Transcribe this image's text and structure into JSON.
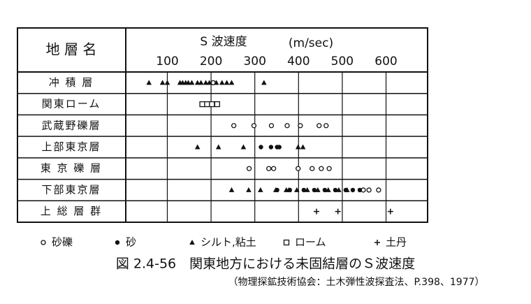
{
  "chart_data": {
    "type": "strip",
    "row_header": "地 層 名",
    "x_label": "S 波速度",
    "x_unit": "(m/sec)",
    "rows": [
      "冲 積 層",
      "関東ローム",
      "武蔵野礫層",
      "上部東京層",
      "東 京 礫 層",
      "下部東京層",
      "上 総 層 群"
    ],
    "xlim": [
      5,
      695
    ],
    "xticks": [
      100,
      200,
      300,
      400,
      500,
      600
    ],
    "grid": true,
    "color": "#111111",
    "series": [
      {
        "name": "砂礫",
        "marker": "open-circle",
        "values": [
          205,
          252,
          298,
          338,
          374,
          404,
          447,
          463,
          287,
          332,
          343,
          399,
          431,
          452,
          470,
          548,
          561,
          583
        ],
        "categories": [
          "冲 積 層",
          "武蔵野礫層",
          "武蔵野礫層",
          "武蔵野礫層",
          "武蔵野礫層",
          "武蔵野礫層",
          "武蔵野礫層",
          "武蔵野礫層",
          "東 京 礫 層",
          "東 京 礫 層",
          "東 京 礫 層",
          "東 京 礫 層",
          "東 京 礫 層",
          "東 京 礫 層",
          "東 京 礫 層",
          "下部東京層",
          "下部東京層",
          "下部東京層"
        ]
      },
      {
        "name": "砂",
        "marker": "filled-circle",
        "values": [
          314,
          337,
          351,
          356,
          351,
          380,
          412,
          436,
          460,
          484,
          508,
          524,
          540
        ],
        "categories": [
          "上部東京層",
          "上部東京層",
          "上部東京層",
          "上部東京層",
          "下部東京層",
          "下部東京層",
          "下部東京層",
          "下部東京層",
          "下部東京層",
          "下部東京層",
          "下部東京層",
          "下部東京層",
          "下部東京層"
        ]
      },
      {
        "name": "シルト,粘土",
        "marker": "triangle",
        "values": [
          58,
          89,
          100,
          129,
          135,
          142,
          148,
          156,
          169,
          177,
          188,
          196,
          212,
          225,
          236,
          247,
          321,
          169,
          217,
          274,
          399,
          410,
          247,
          286,
          313,
          348,
          372,
          378,
          396,
          420,
          444,
          468,
          492,
          511
        ],
        "categories": [
          "冲 積 層",
          "冲 積 層",
          "冲 積 層",
          "冲 積 層",
          "冲 積 層",
          "冲 積 層",
          "冲 積 層",
          "冲 積 層",
          "冲 積 層",
          "冲 積 層",
          "冲 積 層",
          "冲 積 層",
          "冲 積 層",
          "冲 積 層",
          "冲 積 層",
          "冲 積 層",
          "冲 積 層",
          "上部東京層",
          "上部東京層",
          "上部東京層",
          "上部東京層",
          "上部東京層",
          "下部東京層",
          "下部東京層",
          "下部東京層",
          "下部東京層",
          "下部東京層",
          "下部東京層",
          "下部東京層",
          "下部東京層",
          "下部東京層",
          "下部東京層",
          "下部東京層",
          "下部東京層"
        ]
      },
      {
        "name": "ローム",
        "marker": "square",
        "values": [
          180,
          191,
          202,
          214
        ],
        "categories": [
          "関東ローム",
          "関東ローム",
          "関東ローム",
          "関東ローム"
        ]
      },
      {
        "name": "土丹",
        "marker": "plus",
        "values": [
          441,
          490,
          610
        ],
        "categories": [
          "上 総 層 群",
          "上 総 層 群",
          "上 総 層 群"
        ]
      }
    ],
    "caption": "図 2.4-56　関東地方における未固結層のＳ波速度",
    "source": "（物理探鉱技術協会：土木弾性波探査法、P.398、1977）"
  }
}
